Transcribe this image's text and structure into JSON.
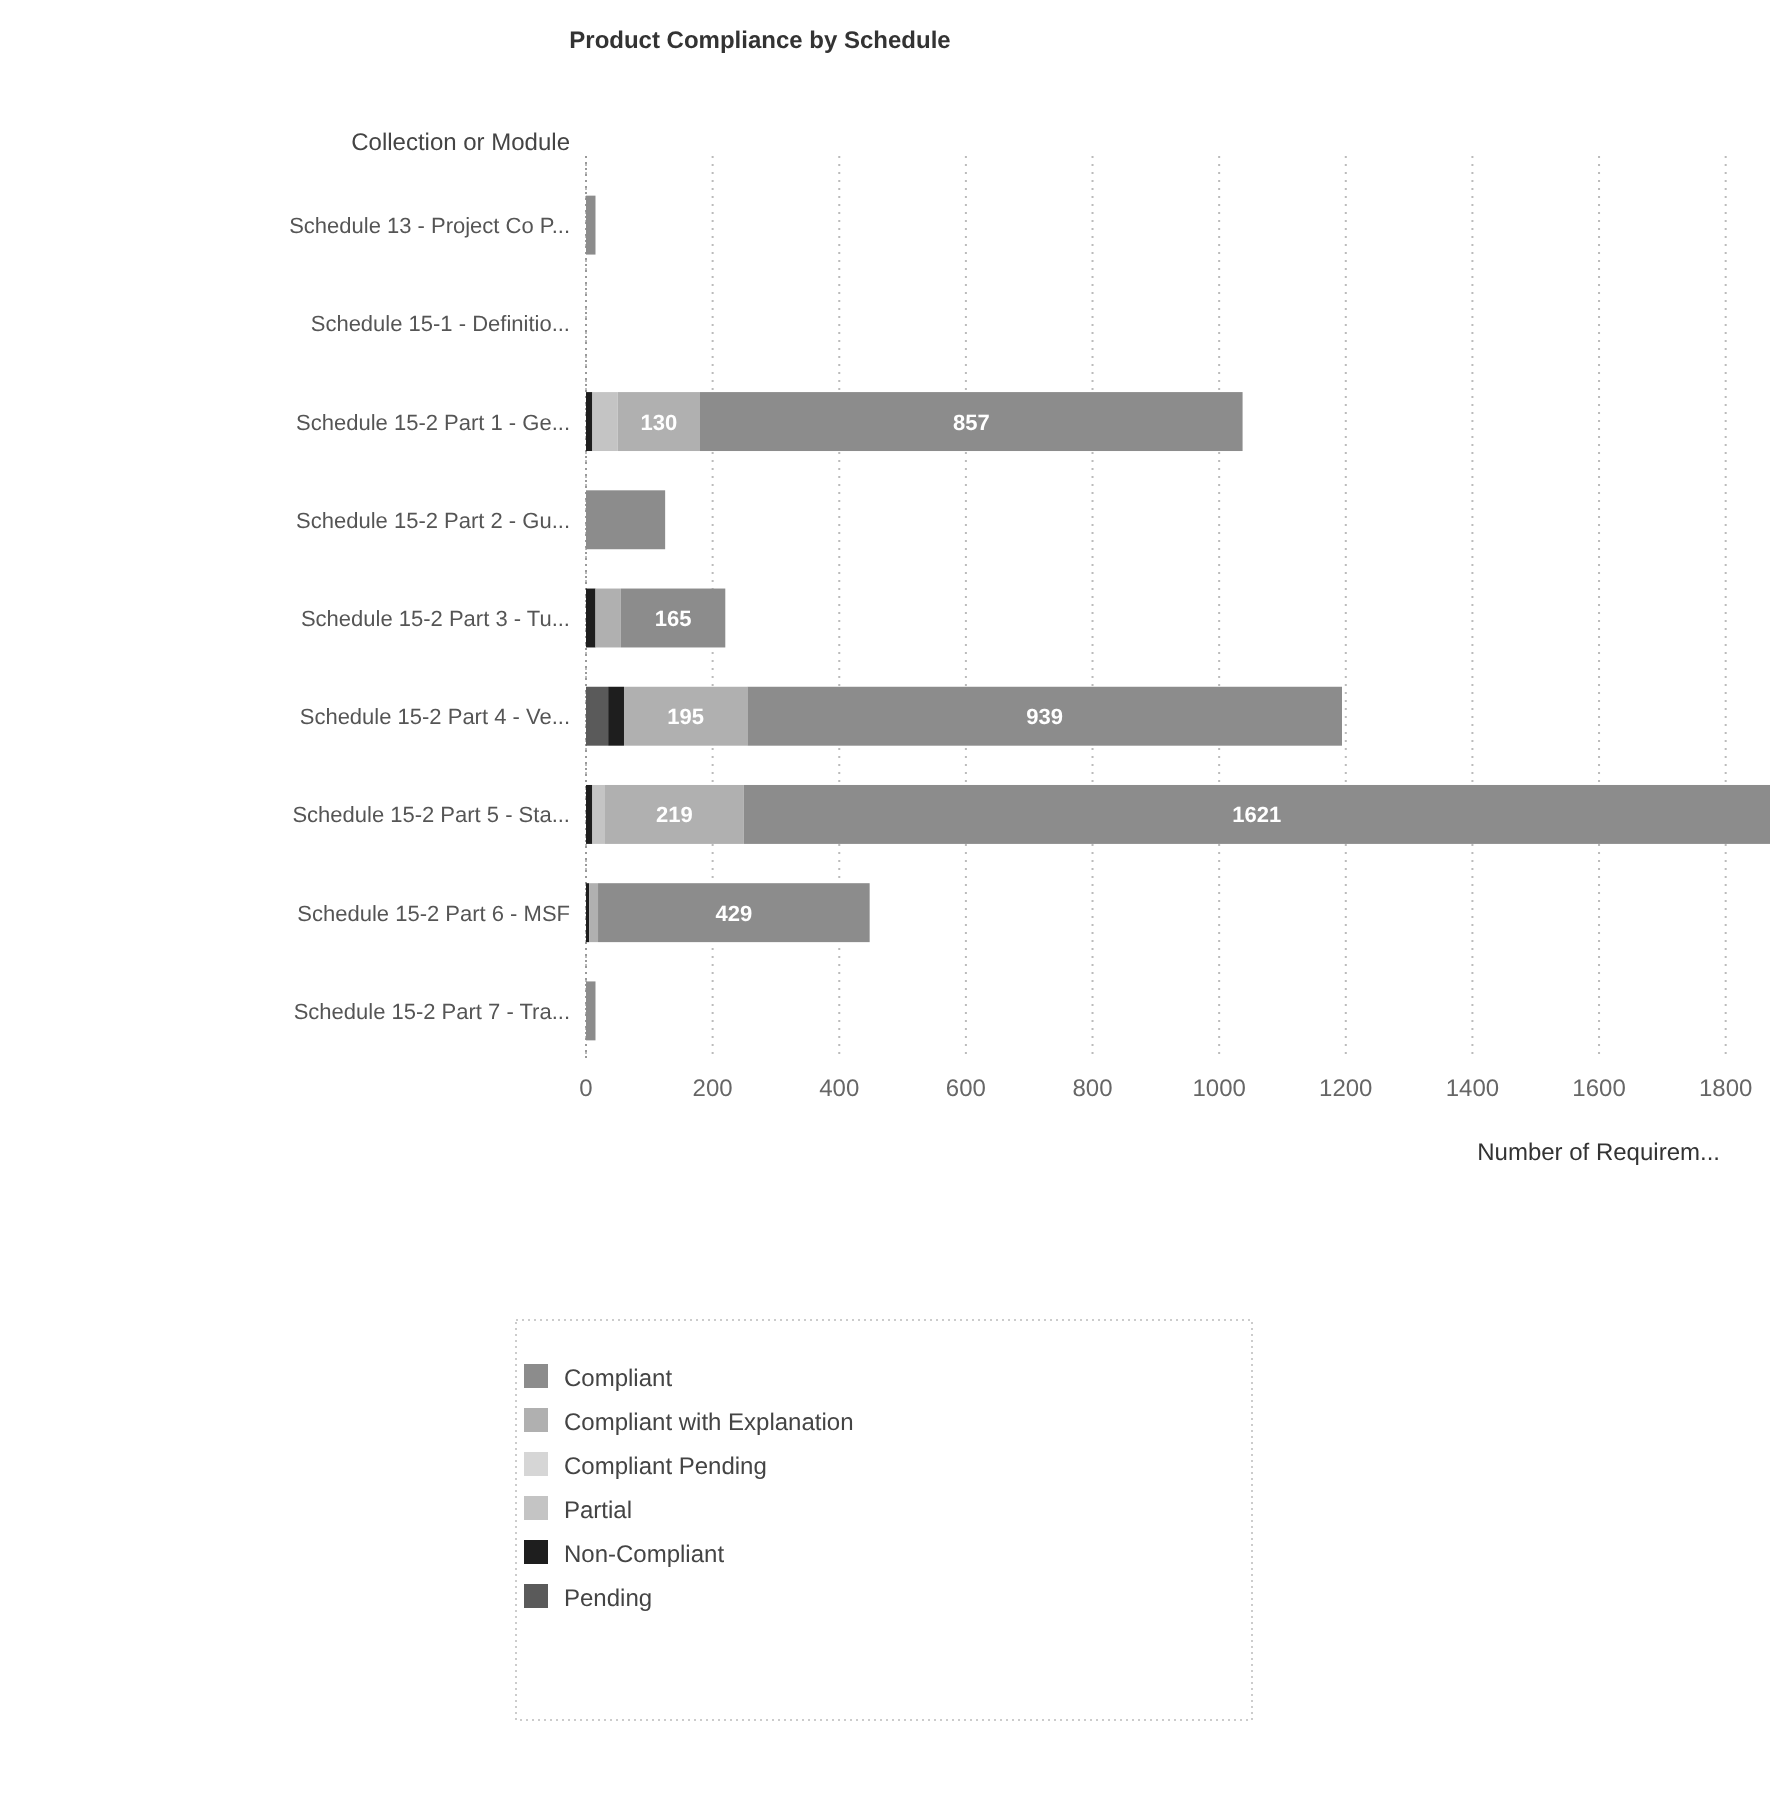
{
  "chart_data": {
    "type": "bar",
    "orientation": "horizontal",
    "stacked": true,
    "title": "Product Compliance by Schedule",
    "ylabel": "Collection or Module",
    "xlabel": "Number of Requirem...",
    "categories": [
      "Schedule 13 - Project Co P...",
      "Schedule 15-1 - Definitio...",
      "Schedule 15-2 Part 1 - Ge...",
      "Schedule 15-2 Part 2 - Gu...",
      "Schedule 15-2 Part 3 - Tu...",
      "Schedule 15-2 Part 4 - Ve...",
      "Schedule 15-2 Part 5 - Sta...",
      "Schedule 15-2 Part 6 - MSF",
      "Schedule 15-2 Part 7 - Tra..."
    ],
    "series": [
      {
        "name": "Pending",
        "color": "#5a5a5a",
        "values": [
          null,
          null,
          null,
          null,
          null,
          35,
          null,
          null,
          null
        ]
      },
      {
        "name": "Non-Compliant",
        "color": "#1e1e1e",
        "values": [
          null,
          null,
          10,
          null,
          15,
          25,
          10,
          5,
          null
        ]
      },
      {
        "name": "Partial",
        "color": "#c4c4c4",
        "values": [
          null,
          null,
          40,
          null,
          null,
          null,
          20,
          null,
          null
        ]
      },
      {
        "name": "Compliant Pending",
        "color": "#d6d6d6",
        "values": [
          null,
          null,
          null,
          null,
          null,
          null,
          null,
          null,
          null
        ]
      },
      {
        "name": "Compliant with Explanation",
        "color": "#b0b0b0",
        "values": [
          null,
          null,
          130,
          null,
          40,
          195,
          219,
          14,
          null
        ],
        "value_labels": [
          null,
          null,
          "130",
          null,
          null,
          "195",
          "219",
          null,
          null
        ]
      },
      {
        "name": "Compliant",
        "color": "#8c8c8c",
        "values": [
          15,
          null,
          857,
          125,
          165,
          939,
          1621,
          429,
          15
        ],
        "value_labels": [
          null,
          null,
          "857",
          null,
          "165",
          "939",
          "1621",
          "429",
          null
        ]
      }
    ],
    "xlim": [
      0,
      1870
    ],
    "xticks": [
      0,
      200,
      400,
      600,
      800,
      1000,
      1200,
      1400,
      1600,
      1800
    ],
    "grid": "x",
    "legend": "bottom"
  }
}
